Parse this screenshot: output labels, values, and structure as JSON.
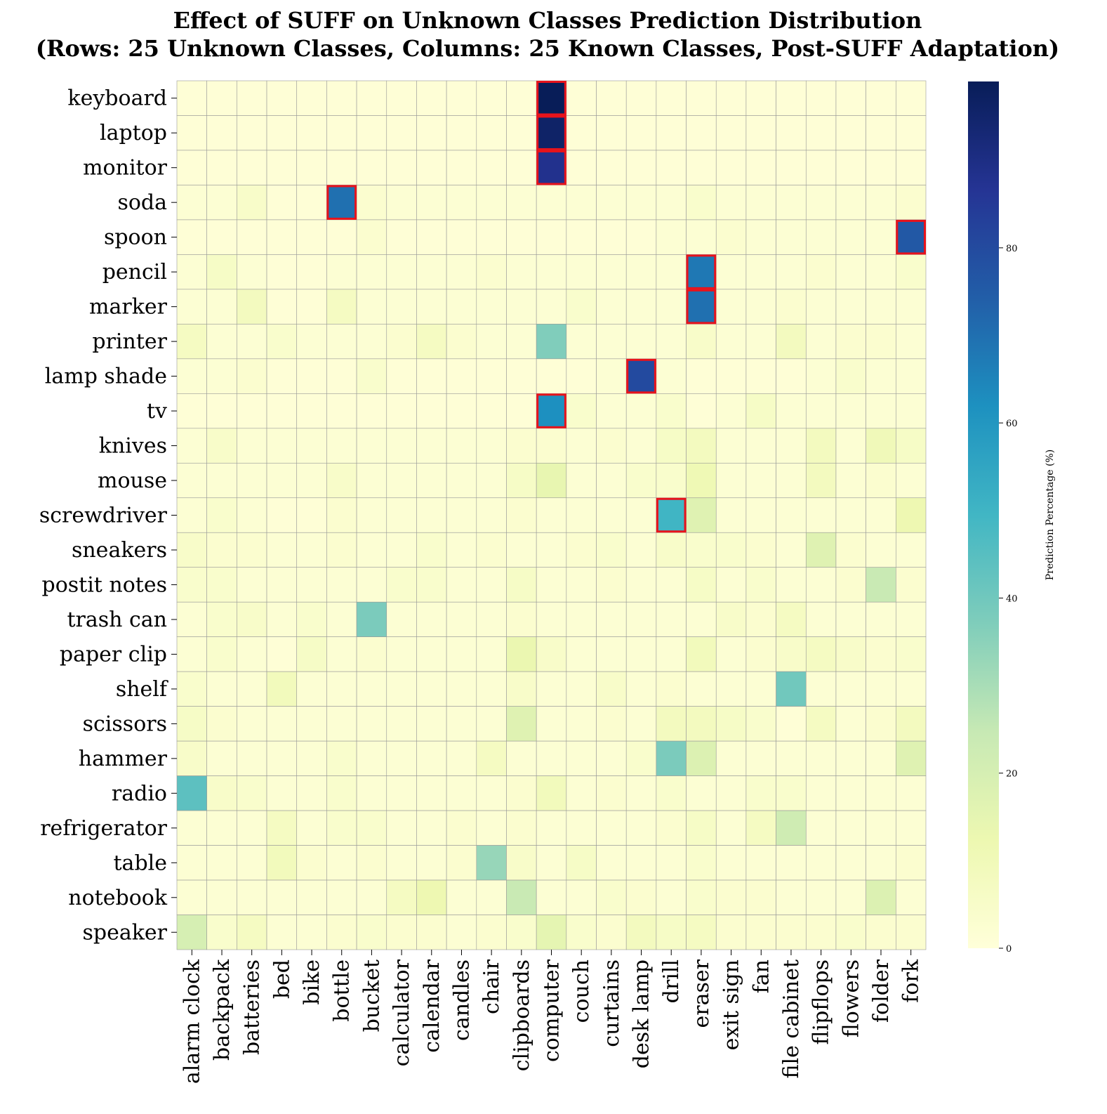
{
  "chart_data": {
    "type": "heatmap",
    "title": "Effect of SUFF on Unknown Classes Prediction Distribution",
    "subtitle": "(Rows: 25 Unknown Classes, Columns: 25 Known Classes, Post-SUFF Adaptation)",
    "rows": [
      "keyboard",
      "laptop",
      "monitor",
      "soda",
      "spoon",
      "pencil",
      "marker",
      "printer",
      "lamp shade",
      "tv",
      "knives",
      "mouse",
      "screwdriver",
      "sneakers",
      "postit notes",
      "trash can",
      "paper clip",
      "shelf",
      "scissors",
      "hammer",
      "radio",
      "refrigerator",
      "table",
      "notebook",
      "speaker"
    ],
    "columns": [
      "alarm clock",
      "backpack",
      "batteries",
      "bed",
      "bike",
      "bottle",
      "bucket",
      "calculator",
      "calendar",
      "candles",
      "chair",
      "clipboards",
      "computer",
      "couch",
      "curtains",
      "desk lamp",
      "drill",
      "eraser",
      "exit sign",
      "fan",
      "file cabinet",
      "flipflops",
      "flowers",
      "folder",
      "fork"
    ],
    "values": [
      [
        1,
        1,
        1,
        1,
        1,
        1,
        1,
        1,
        1,
        1,
        1,
        1,
        99,
        1,
        1,
        1,
        1,
        1,
        1,
        1,
        1,
        1,
        1,
        1,
        1
      ],
      [
        1,
        1,
        1,
        1,
        1,
        1,
        1,
        1,
        1,
        1,
        1,
        1,
        96,
        1,
        1,
        1,
        1,
        1,
        1,
        1,
        1,
        1,
        1,
        1,
        1
      ],
      [
        1,
        1,
        1,
        1,
        1,
        1,
        1,
        1,
        1,
        1,
        1,
        1,
        88,
        1,
        1,
        1,
        1,
        1,
        1,
        1,
        1,
        1,
        1,
        1,
        1
      ],
      [
        2,
        2,
        5,
        1,
        1,
        70,
        3,
        2,
        2,
        2,
        2,
        2,
        2,
        2,
        2,
        2,
        2,
        4,
        2,
        2,
        2,
        2,
        2,
        2,
        3
      ],
      [
        1,
        1,
        1,
        1,
        1,
        1,
        3,
        1,
        1,
        1,
        1,
        1,
        1,
        1,
        1,
        1,
        2,
        2,
        3,
        2,
        2,
        2,
        2,
        2,
        76
      ],
      [
        2,
        6,
        2,
        1,
        1,
        2,
        2,
        2,
        2,
        2,
        3,
        2,
        2,
        2,
        2,
        2,
        2,
        68,
        2,
        2,
        2,
        3,
        2,
        2,
        4
      ],
      [
        2,
        2,
        8,
        1,
        1,
        7,
        2,
        2,
        2,
        2,
        2,
        2,
        2,
        4,
        2,
        2,
        2,
        70,
        2,
        2,
        3,
        2,
        2,
        2,
        2
      ],
      [
        7,
        2,
        2,
        4,
        2,
        2,
        2,
        3,
        7,
        3,
        2,
        2,
        37,
        2,
        2,
        2,
        2,
        5,
        2,
        2,
        8,
        2,
        3,
        3,
        2
      ],
      [
        2,
        2,
        3,
        1,
        1,
        1,
        4,
        1,
        1,
        1,
        1,
        1,
        1,
        1,
        2,
        80,
        2,
        1,
        1,
        1,
        1,
        2,
        4,
        2,
        2
      ],
      [
        1,
        1,
        1,
        1,
        1,
        1,
        1,
        1,
        1,
        1,
        1,
        1,
        62,
        4,
        2,
        2,
        4,
        1,
        2,
        6,
        2,
        2,
        2,
        2,
        2
      ],
      [
        2,
        5,
        2,
        2,
        2,
        2,
        2,
        2,
        2,
        2,
        2,
        3,
        3,
        2,
        3,
        2,
        6,
        8,
        2,
        2,
        2,
        8,
        2,
        10,
        6
      ],
      [
        2,
        2,
        2,
        2,
        2,
        5,
        2,
        2,
        2,
        2,
        2,
        6,
        14,
        2,
        2,
        4,
        4,
        11,
        2,
        2,
        2,
        8,
        2,
        3,
        2
      ],
      [
        2,
        4,
        2,
        1,
        1,
        3,
        2,
        2,
        2,
        2,
        2,
        3,
        2,
        2,
        2,
        2,
        50,
        17,
        2,
        2,
        2,
        2,
        2,
        2,
        12
      ],
      [
        5,
        3,
        3,
        2,
        2,
        3,
        2,
        2,
        4,
        2,
        3,
        2,
        2,
        3,
        4,
        2,
        5,
        4,
        4,
        3,
        2,
        17,
        3,
        2,
        2
      ],
      [
        4,
        4,
        2,
        2,
        2,
        2,
        2,
        4,
        4,
        2,
        2,
        6,
        2,
        2,
        3,
        2,
        2,
        6,
        2,
        4,
        2,
        2,
        3,
        24,
        3
      ],
      [
        2,
        4,
        5,
        2,
        4,
        2,
        38,
        2,
        2,
        2,
        2,
        3,
        2,
        2,
        2,
        2,
        2,
        2,
        5,
        3,
        7,
        2,
        2,
        2,
        2
      ],
      [
        2,
        4,
        2,
        1,
        6,
        2,
        3,
        2,
        2,
        2,
        2,
        13,
        5,
        2,
        2,
        2,
        2,
        9,
        2,
        3,
        5,
        7,
        5,
        3,
        4
      ],
      [
        4,
        2,
        2,
        9,
        2,
        2,
        2,
        2,
        2,
        2,
        2,
        5,
        2,
        2,
        5,
        2,
        3,
        2,
        2,
        2,
        40,
        2,
        2,
        2,
        2
      ],
      [
        6,
        3,
        2,
        2,
        2,
        2,
        2,
        2,
        2,
        2,
        2,
        17,
        2,
        2,
        3,
        2,
        8,
        8,
        6,
        4,
        1,
        7,
        2,
        3,
        8
      ],
      [
        5,
        2,
        2,
        2,
        2,
        4,
        2,
        2,
        2,
        2,
        7,
        2,
        2,
        2,
        2,
        4,
        38,
        18,
        2,
        2,
        2,
        2,
        2,
        2,
        17
      ],
      [
        44,
        5,
        4,
        2,
        2,
        4,
        2,
        2,
        2,
        2,
        2,
        3,
        9,
        2,
        3,
        2,
        4,
        2,
        2,
        4,
        4,
        2,
        2,
        2,
        2
      ],
      [
        2,
        2,
        2,
        7,
        2,
        4,
        4,
        2,
        2,
        3,
        2,
        3,
        2,
        2,
        2,
        2,
        3,
        6,
        2,
        7,
        22,
        2,
        2,
        2,
        2
      ],
      [
        2,
        2,
        2,
        9,
        3,
        2,
        3,
        2,
        2,
        3,
        33,
        5,
        2,
        6,
        2,
        2,
        2,
        4,
        2,
        2,
        2,
        2,
        2,
        2,
        3
      ],
      [
        2,
        2,
        2,
        2,
        2,
        2,
        2,
        7,
        12,
        2,
        2,
        24,
        2,
        2,
        4,
        3,
        2,
        4,
        3,
        3,
        2,
        2,
        2,
        18,
        2
      ],
      [
        20,
        4,
        7,
        2,
        2,
        3,
        4,
        3,
        3,
        2,
        3,
        4,
        15,
        4,
        3,
        8,
        6,
        7,
        3,
        3,
        3,
        3,
        4,
        3,
        3
      ]
    ],
    "highlighted": [
      [
        0,
        12
      ],
      [
        1,
        12
      ],
      [
        2,
        12
      ],
      [
        3,
        5
      ],
      [
        4,
        24
      ],
      [
        5,
        17
      ],
      [
        6,
        17
      ],
      [
        8,
        15
      ],
      [
        9,
        12
      ],
      [
        12,
        16
      ]
    ],
    "colorbar": {
      "label": "Prediction Percentage (%)",
      "ticks": [
        0,
        20,
        40,
        60,
        80
      ],
      "range": [
        0,
        99
      ],
      "colormap": "YlGnBu"
    },
    "highlight_color": "#e8131b",
    "grid_color": "#999999"
  }
}
